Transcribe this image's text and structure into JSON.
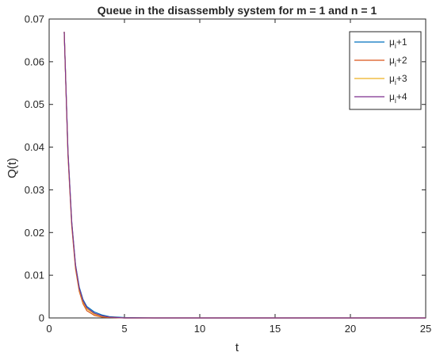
{
  "chart_data": {
    "type": "line",
    "title": "Queue in the disassembly system for m = 1 and n = 1",
    "xlabel": "t",
    "ylabel": "Q(t)",
    "xlim": [
      0,
      25
    ],
    "ylim": [
      0,
      0.07
    ],
    "x_ticks": [
      "0",
      "5",
      "10",
      "15",
      "20",
      "25"
    ],
    "y_ticks": [
      "0",
      "0.01",
      "0.02",
      "0.03",
      "0.04",
      "0.05",
      "0.06",
      "0.07"
    ],
    "grid": false,
    "legend_position": "top-right",
    "series": [
      {
        "name": "+1",
        "legend_prefix": "μ",
        "legend_sub": "i",
        "color": "#0072BD",
        "x": [
          1.0,
          1.25,
          1.5,
          1.75,
          2.0,
          2.25,
          2.5,
          3.0,
          3.5,
          4.0,
          5.0,
          7.0,
          10.0,
          15.0,
          20.0,
          25.0
        ],
        "y": [
          0.067,
          0.039,
          0.0225,
          0.0125,
          0.0072,
          0.0043,
          0.0027,
          0.0014,
          0.0007,
          0.0003,
          0.0001,
          0.0,
          0.0,
          0.0,
          0.0,
          0.0
        ]
      },
      {
        "name": "+2",
        "legend_prefix": "μ",
        "legend_sub": "i",
        "color": "#D95319",
        "x": [
          1.0,
          1.25,
          1.5,
          1.75,
          2.0,
          2.25,
          2.5,
          3.0,
          3.5,
          4.0,
          5.0,
          7.0,
          10.0,
          15.0,
          20.0,
          25.0
        ],
        "y": [
          0.067,
          0.038,
          0.0215,
          0.0115,
          0.0062,
          0.0033,
          0.0017,
          0.0006,
          0.0002,
          0.0001,
          0.0,
          0.0,
          0.0,
          0.0,
          0.0,
          0.0
        ]
      },
      {
        "name": "+3",
        "legend_prefix": "μ",
        "legend_sub": "i",
        "color": "#EDB120",
        "x": [
          1.0,
          1.25,
          1.5,
          1.75,
          2.0,
          2.25,
          2.5,
          3.0,
          3.5,
          4.0,
          5.0,
          7.0,
          10.0,
          15.0,
          20.0,
          25.0
        ],
        "y": [
          0.067,
          0.0385,
          0.022,
          0.012,
          0.0066,
          0.0037,
          0.0021,
          0.0009,
          0.0004,
          0.0002,
          0.0,
          0.0,
          0.0,
          0.0,
          0.0,
          0.0
        ]
      },
      {
        "name": "+4",
        "legend_prefix": "μ",
        "legend_sub": "i",
        "color": "#7E2F8E",
        "x": [
          1.0,
          1.25,
          1.5,
          1.75,
          2.0,
          2.25,
          2.5,
          3.0,
          3.5,
          4.0,
          5.0,
          7.0,
          10.0,
          15.0,
          20.0,
          25.0
        ],
        "y": [
          0.067,
          0.0388,
          0.0223,
          0.0123,
          0.0069,
          0.004,
          0.0024,
          0.0011,
          0.0005,
          0.0002,
          0.0,
          0.0,
          0.0,
          0.0,
          0.0,
          0.0
        ]
      }
    ]
  }
}
